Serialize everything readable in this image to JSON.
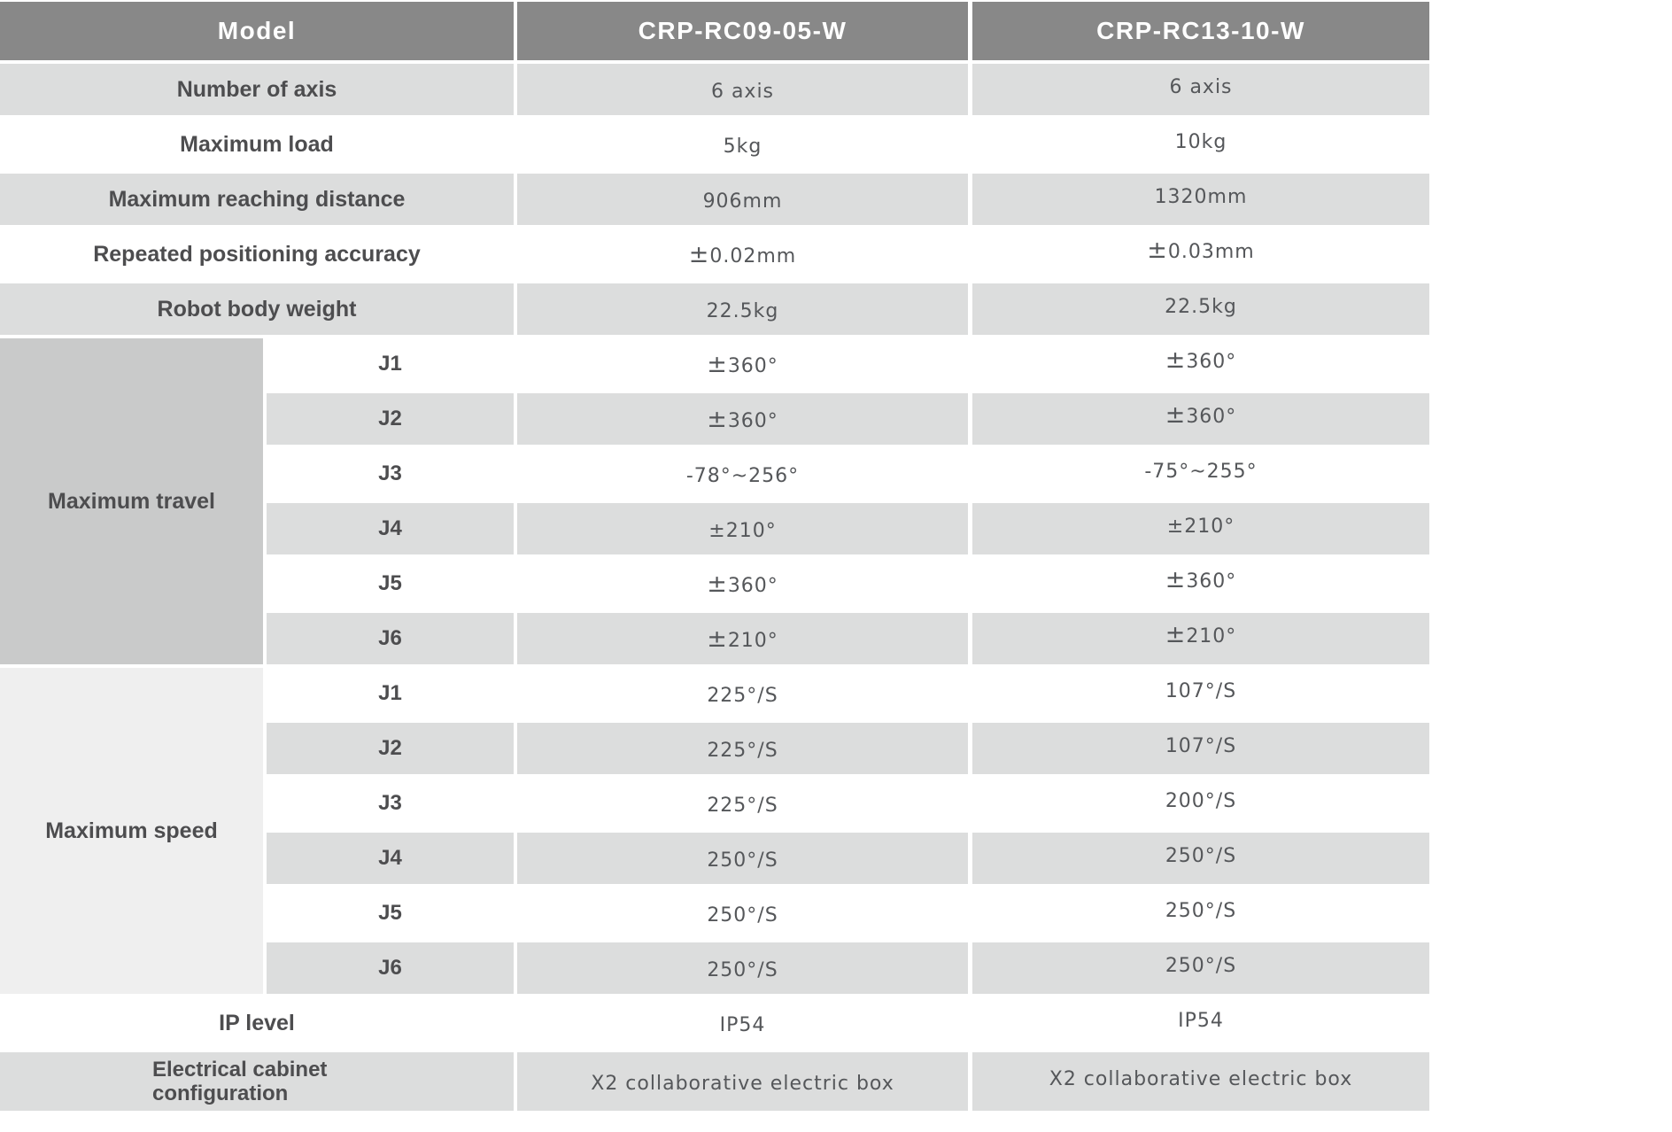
{
  "table": {
    "header": {
      "model_label": "Model",
      "columns": [
        "CRP-RC09-05-W",
        "CRP-RC13-10-W"
      ]
    },
    "rows_top": [
      {
        "label": "Number of axis",
        "v1": "6 axis",
        "v2": "6 axis"
      },
      {
        "label": "Maximum load",
        "v1": "5kg",
        "v2": "10kg"
      },
      {
        "label": "Maximum reaching distance",
        "v1": "906mm",
        "v2": "1320mm"
      },
      {
        "label": "Repeated positioning accuracy",
        "v1": "±0.02mm",
        "v2": "±0.03mm"
      },
      {
        "label": "Robot body weight",
        "v1": "22.5kg",
        "v2": "22.5kg"
      }
    ],
    "groups": [
      {
        "label": "Maximum travel",
        "rows": [
          {
            "joint": "J1",
            "v1": "±360°",
            "v2": "±360°"
          },
          {
            "joint": "J2",
            "v1": "±360°",
            "v2": "±360°"
          },
          {
            "joint": "J3",
            "v1": "-78°~256°",
            "v2": "-75°~255°"
          },
          {
            "joint": "J4",
            "v1": "±210°",
            "v2": "±210°"
          },
          {
            "joint": "J5",
            "v1": "±360°",
            "v2": "±360°"
          },
          {
            "joint": "J6",
            "v1": "±210°",
            "v2": "±210°"
          }
        ]
      },
      {
        "label": "Maximum speed",
        "rows": [
          {
            "joint": "J1",
            "v1": "225°/S",
            "v2": "107°/S"
          },
          {
            "joint": "J2",
            "v1": "225°/S",
            "v2": "107°/S"
          },
          {
            "joint": "J3",
            "v1": "225°/S",
            "v2": "200°/S"
          },
          {
            "joint": "J4",
            "v1": "250°/S",
            "v2": "250°/S"
          },
          {
            "joint": "J5",
            "v1": "250°/S",
            "v2": "250°/S"
          },
          {
            "joint": "J6",
            "v1": "250°/S",
            "v2": "250°/S"
          }
        ]
      }
    ],
    "rows_bottom": [
      {
        "label": "IP level",
        "v1": "IP54",
        "v2": "IP54"
      },
      {
        "label": "Electrical cabinet configuration",
        "v1": "X2 collaborative electric box",
        "v2": "X2 collaborative electric box"
      }
    ],
    "colors": {
      "header_bg": "#888888",
      "row_alt_bg": "#dcdddd",
      "row_white_bg": "#ffffff",
      "travel_group_bg": "#c9caca",
      "speed_group_bg": "#efefef",
      "header_text": "#ffffff",
      "label_text": "#4d4d4f",
      "value_text": "#55575a"
    }
  }
}
